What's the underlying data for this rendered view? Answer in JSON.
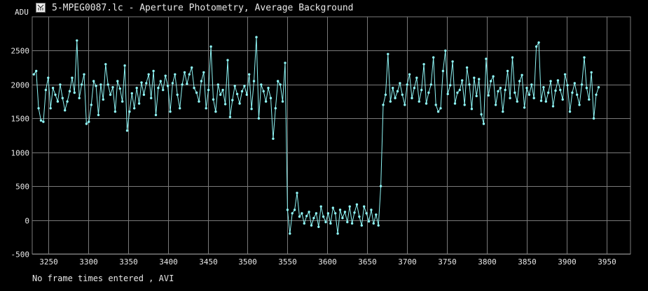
{
  "window": {
    "title": "5-MPEG0087.lc - Aperture Photometry, Average Background",
    "footer": "No frame times entered , AVI"
  },
  "colors": {
    "background": "#000000",
    "grid": "#7a7a7a",
    "series": "#8ff6f6",
    "text": "#e8e8e8"
  },
  "chart_data": {
    "type": "line",
    "title": "5-MPEG0087.lc - Aperture Photometry, Average Background",
    "xlabel": "",
    "ylabel": "ADU",
    "xlim": [
      3230,
      3980
    ],
    "ylim": [
      -500,
      3000
    ],
    "xticks": [
      3250,
      3300,
      3350,
      3400,
      3450,
      3500,
      3550,
      3600,
      3650,
      3700,
      3750,
      3800,
      3850,
      3900,
      3950
    ],
    "yticks": [
      -500,
      0,
      500,
      1000,
      1500,
      2000,
      2500
    ],
    "grid": true,
    "legend": "none",
    "series": [
      {
        "name": "",
        "sample_step": 3,
        "x_start": 3232,
        "values": [
          2150,
          2200,
          1650,
          1470,
          1450,
          1920,
          2100,
          1650,
          1950,
          1850,
          1750,
          2000,
          1800,
          1620,
          1750,
          1900,
          2100,
          1880,
          2650,
          1800,
          2000,
          2150,
          1420,
          1450,
          1700,
          2050,
          1980,
          1550,
          2000,
          1780,
          2300,
          2000,
          1850,
          1960,
          1600,
          2050,
          1940,
          1750,
          2280,
          1320,
          1600,
          1870,
          1650,
          1950,
          1720,
          2030,
          1850,
          2020,
          2150,
          1800,
          2200,
          1550,
          1950,
          2050,
          1920,
          2130,
          1980,
          1600,
          2020,
          2150,
          1850,
          1650,
          2000,
          2180,
          2010,
          2150,
          2250,
          1950,
          1880,
          1750,
          2050,
          2180,
          1650,
          1920,
          2560,
          1780,
          1600,
          2000,
          1850,
          1920,
          1710,
          2360,
          1520,
          1770,
          1980,
          1860,
          1720,
          1900,
          1980,
          1850,
          2150,
          1640,
          2050,
          2700,
          1500,
          2000,
          1900,
          1750,
          1950,
          1800,
          1200,
          1650,
          2050,
          2000,
          1750,
          2320,
          150,
          -200,
          100,
          150,
          400,
          50,
          100,
          -50,
          60,
          120,
          -80,
          30,
          100,
          -100,
          200,
          50,
          -30,
          100,
          -50,
          180,
          100,
          -200,
          150,
          30,
          120,
          -30,
          200,
          -50,
          110,
          230,
          50,
          -80,
          200,
          100,
          -20,
          150,
          -50,
          80,
          -80,
          500,
          1700,
          1850,
          2450,
          1750,
          1950,
          1800,
          1900,
          2020,
          1850,
          1700,
          2000,
          2150,
          1800,
          1950,
          2100,
          1750,
          1920,
          2300,
          1720,
          1880,
          2000,
          2400,
          1700,
          1600,
          1650,
          2200,
          2500,
          1860,
          1990,
          2340,
          1720,
          1880,
          1920,
          2060,
          1700,
          2250,
          2000,
          1640,
          2100,
          1830,
          2080,
          1560,
          1420,
          2380,
          1840,
          2050,
          2120,
          1700,
          1900,
          1950,
          1600,
          1920,
          2200,
          1800,
          2400,
          1880,
          1750,
          2050,
          2140,
          1660,
          1950,
          1850,
          2000,
          1800,
          2560,
          2620,
          1760,
          1960,
          1750,
          1880,
          2050,
          1680,
          1910,
          2060,
          1920,
          1780,
          2150,
          1990,
          1600,
          1880,
          2020,
          1850,
          1700,
          2000,
          2400,
          1950,
          1780,
          2180,
          1500,
          1850,
          1960
        ]
      }
    ]
  }
}
